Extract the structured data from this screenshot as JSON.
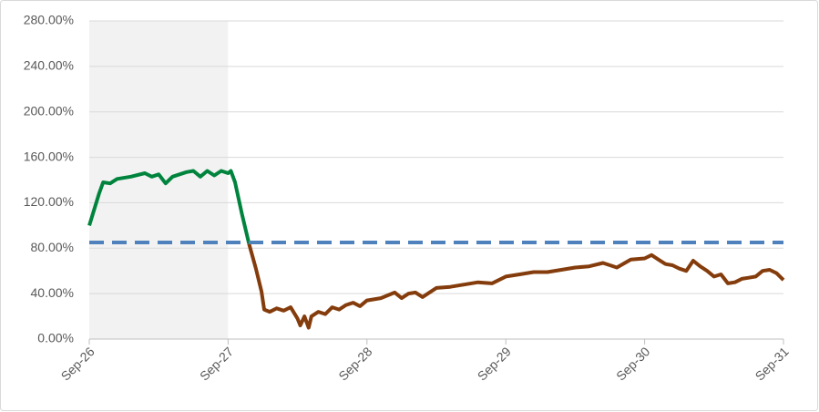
{
  "chart_data": {
    "type": "line",
    "xlim": [
      26,
      31
    ],
    "xticks": [
      {
        "value": 26,
        "label": "Sep-26"
      },
      {
        "value": 27,
        "label": "Sep-27"
      },
      {
        "value": 28,
        "label": "Sep-28"
      },
      {
        "value": 29,
        "label": "Sep-29"
      },
      {
        "value": 30,
        "label": "Sep-30"
      },
      {
        "value": 31,
        "label": "Sep-31"
      }
    ],
    "ylim": [
      0,
      280
    ],
    "yticks": [
      {
        "value": 0,
        "label": "0.00%"
      },
      {
        "value": 40,
        "label": "40.00%"
      },
      {
        "value": 80,
        "label": "80.00%"
      },
      {
        "value": 120,
        "label": "120.00%"
      },
      {
        "value": 160,
        "label": "160.00%"
      },
      {
        "value": 200,
        "label": "200.00%"
      },
      {
        "value": 240,
        "label": "240.00%"
      },
      {
        "value": 280,
        "label": "280.00%"
      }
    ],
    "grid": true,
    "shaded_region": {
      "x": [
        26,
        27
      ],
      "color": "#f2f2f2"
    },
    "reference_line": {
      "value": 85,
      "color": "#4f81bd"
    },
    "series": [
      {
        "color": "#00843d",
        "x": [
          26.0,
          26.03,
          26.07,
          26.1,
          26.15,
          26.2,
          26.3,
          26.4,
          26.45,
          26.5,
          26.55,
          26.6,
          26.7,
          26.75,
          26.8,
          26.85,
          26.9,
          26.95,
          27.0,
          27.02,
          27.05,
          27.1,
          27.15
        ],
        "values": [
          100,
          112,
          128,
          138,
          137,
          141,
          143,
          146,
          143,
          145,
          137,
          143,
          147,
          148,
          143,
          148,
          144,
          148,
          146,
          148,
          138,
          110,
          84
        ]
      },
      {
        "color": "#843c0c",
        "x": [
          27.15,
          27.2,
          27.24,
          27.26,
          27.3,
          27.35,
          27.4,
          27.45,
          27.5,
          27.52,
          27.55,
          27.58,
          27.6,
          27.65,
          27.7,
          27.75,
          27.8,
          27.85,
          27.9,
          27.95,
          28.0,
          28.1,
          28.2,
          28.25,
          28.3,
          28.35,
          28.4,
          28.5,
          28.6,
          28.7,
          28.8,
          28.9,
          29.0,
          29.1,
          29.2,
          29.3,
          29.4,
          29.5,
          29.6,
          29.7,
          29.8,
          29.9,
          30.0,
          30.05,
          30.1,
          30.15,
          30.2,
          30.25,
          30.3,
          30.35,
          30.4,
          30.45,
          30.5,
          30.55,
          30.6,
          30.65,
          30.7,
          30.75,
          30.8,
          30.85,
          30.9,
          30.95,
          31.0
        ],
        "values": [
          84,
          62,
          42,
          26,
          24,
          27,
          25,
          28,
          18,
          12,
          20,
          10,
          20,
          24,
          22,
          28,
          26,
          30,
          32,
          29,
          34,
          36,
          41,
          36,
          40,
          41,
          37,
          45,
          46,
          48,
          50,
          49,
          55,
          57,
          59,
          59,
          61,
          63,
          64,
          67,
          63,
          70,
          71,
          74,
          70,
          66,
          65,
          62,
          60,
          69,
          64,
          60,
          55,
          57,
          49,
          50,
          53,
          54,
          55,
          60,
          61,
          58,
          52
        ]
      }
    ]
  }
}
